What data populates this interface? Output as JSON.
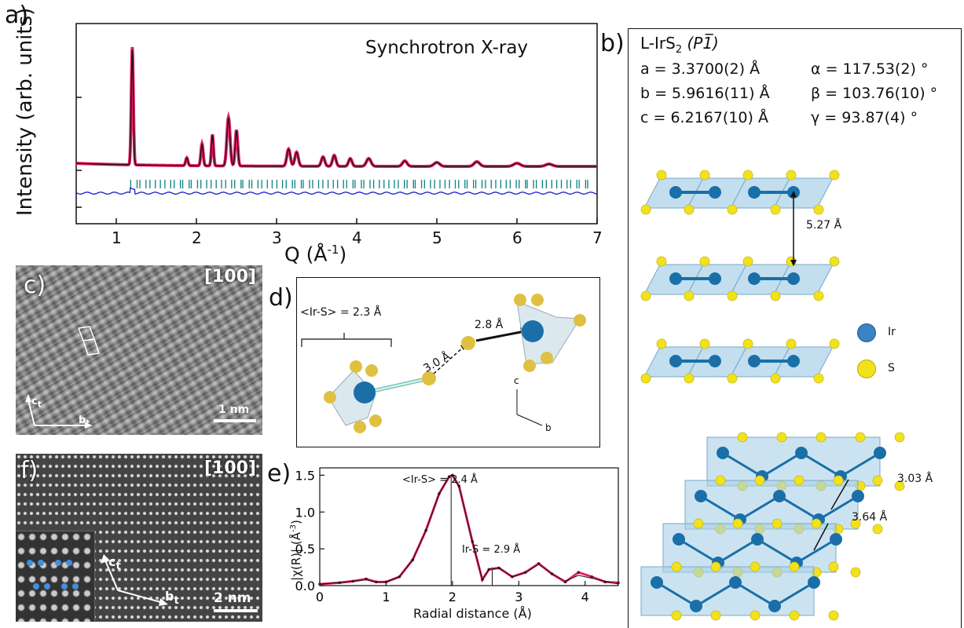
{
  "panels": {
    "a": "a)",
    "b": "b)",
    "c": "c)",
    "d": "d)",
    "e": "e)",
    "f": "f)"
  },
  "panel_a": {
    "title": "Synchrotron X-ray",
    "ylabel": "Intensity (arb. units)",
    "xlabel": "Q (Å",
    "xlabel_sup": "-1",
    "xlabel_close": ")",
    "xticks": [
      "1",
      "2",
      "3",
      "4",
      "5",
      "6",
      "7"
    ],
    "colors": {
      "observed": "#e8206a",
      "calc": "#111111",
      "diff": "#1a1ac8",
      "ticks": "#0f7f7f"
    }
  },
  "panel_b": {
    "compound": "L-IrS",
    "compound_sub": "2",
    "space_group": "(P1̅)",
    "params_left": [
      "a = 3.3700(2) Å",
      "b = 5.9616(11) Å",
      "c = 6.2167(10) Å"
    ],
    "params_right": [
      "α = 117.53(2) °",
      "β = 103.76(10) °",
      "γ = 93.87(4) °"
    ],
    "interlayer": "5.27 Å",
    "d1": "3.03 Å",
    "d2": "3.64 Å",
    "legend": [
      {
        "label": "Ir",
        "color": "#3a82c4"
      },
      {
        "label": "S",
        "color": "#f2e21c"
      }
    ]
  },
  "panel_c": {
    "zone": "[100]",
    "scale": "1 nm",
    "axis_c": "c",
    "axis_b": "b",
    "axis_sub": "t"
  },
  "panel_d": {
    "avg": "<Ir-S> = 2.3 Å",
    "d1": "2.8 Å",
    "d2": "3.0 Å",
    "axis_c": "c",
    "axis_b": "b"
  },
  "panel_f": {
    "zone": "[100]",
    "scale": "2 nm",
    "axis_c": "c",
    "axis_b": "b",
    "axis_sub": "t"
  },
  "chart_data": {
    "type": "line",
    "xlabel": "Radial distance (Å)",
    "ylabel": "|χ(R)| (Å",
    "ylabel_sup": "-3",
    "ylabel_close": ")",
    "xlim": [
      0,
      4.5
    ],
    "ylim": [
      0,
      1.6
    ],
    "xticks": [
      0,
      1,
      2,
      3,
      4
    ],
    "yticks": [
      "0.0",
      "0.5",
      "1.0",
      "1.5"
    ],
    "annotations": [
      "<Ir-S> = 2.4 Å",
      "Ir-S = 2.9 Å"
    ],
    "series": [
      {
        "x": [
          0.0,
          0.3,
          0.5,
          0.7,
          0.85,
          1.0,
          1.2,
          1.4,
          1.6,
          1.8,
          1.95,
          2.0,
          2.1,
          2.3,
          2.45,
          2.55,
          2.7,
          2.9,
          3.1,
          3.3,
          3.5,
          3.7,
          3.9,
          4.1,
          4.3,
          4.5
        ],
        "y": [
          0.02,
          0.04,
          0.06,
          0.09,
          0.05,
          0.05,
          0.12,
          0.35,
          0.75,
          1.25,
          1.48,
          1.5,
          1.35,
          0.6,
          0.08,
          0.22,
          0.24,
          0.12,
          0.18,
          0.3,
          0.16,
          0.05,
          0.18,
          0.12,
          0.05,
          0.04
        ],
        "color": "#e8206a"
      },
      {
        "x": [
          0.0,
          0.3,
          0.5,
          0.7,
          0.85,
          1.0,
          1.2,
          1.4,
          1.6,
          1.8,
          1.95,
          2.0,
          2.1,
          2.3,
          2.45,
          2.55,
          2.7,
          2.9,
          3.1,
          3.3,
          3.5,
          3.7,
          3.9,
          4.1,
          4.3,
          4.5
        ],
        "y": [
          0.02,
          0.04,
          0.06,
          0.08,
          0.05,
          0.05,
          0.12,
          0.35,
          0.75,
          1.25,
          1.48,
          1.5,
          1.35,
          0.6,
          0.08,
          0.22,
          0.24,
          0.12,
          0.18,
          0.29,
          0.16,
          0.06,
          0.14,
          0.1,
          0.06,
          0.02
        ],
        "color": "#111111"
      }
    ],
    "sticks": [
      1.98,
      2.6
    ]
  }
}
